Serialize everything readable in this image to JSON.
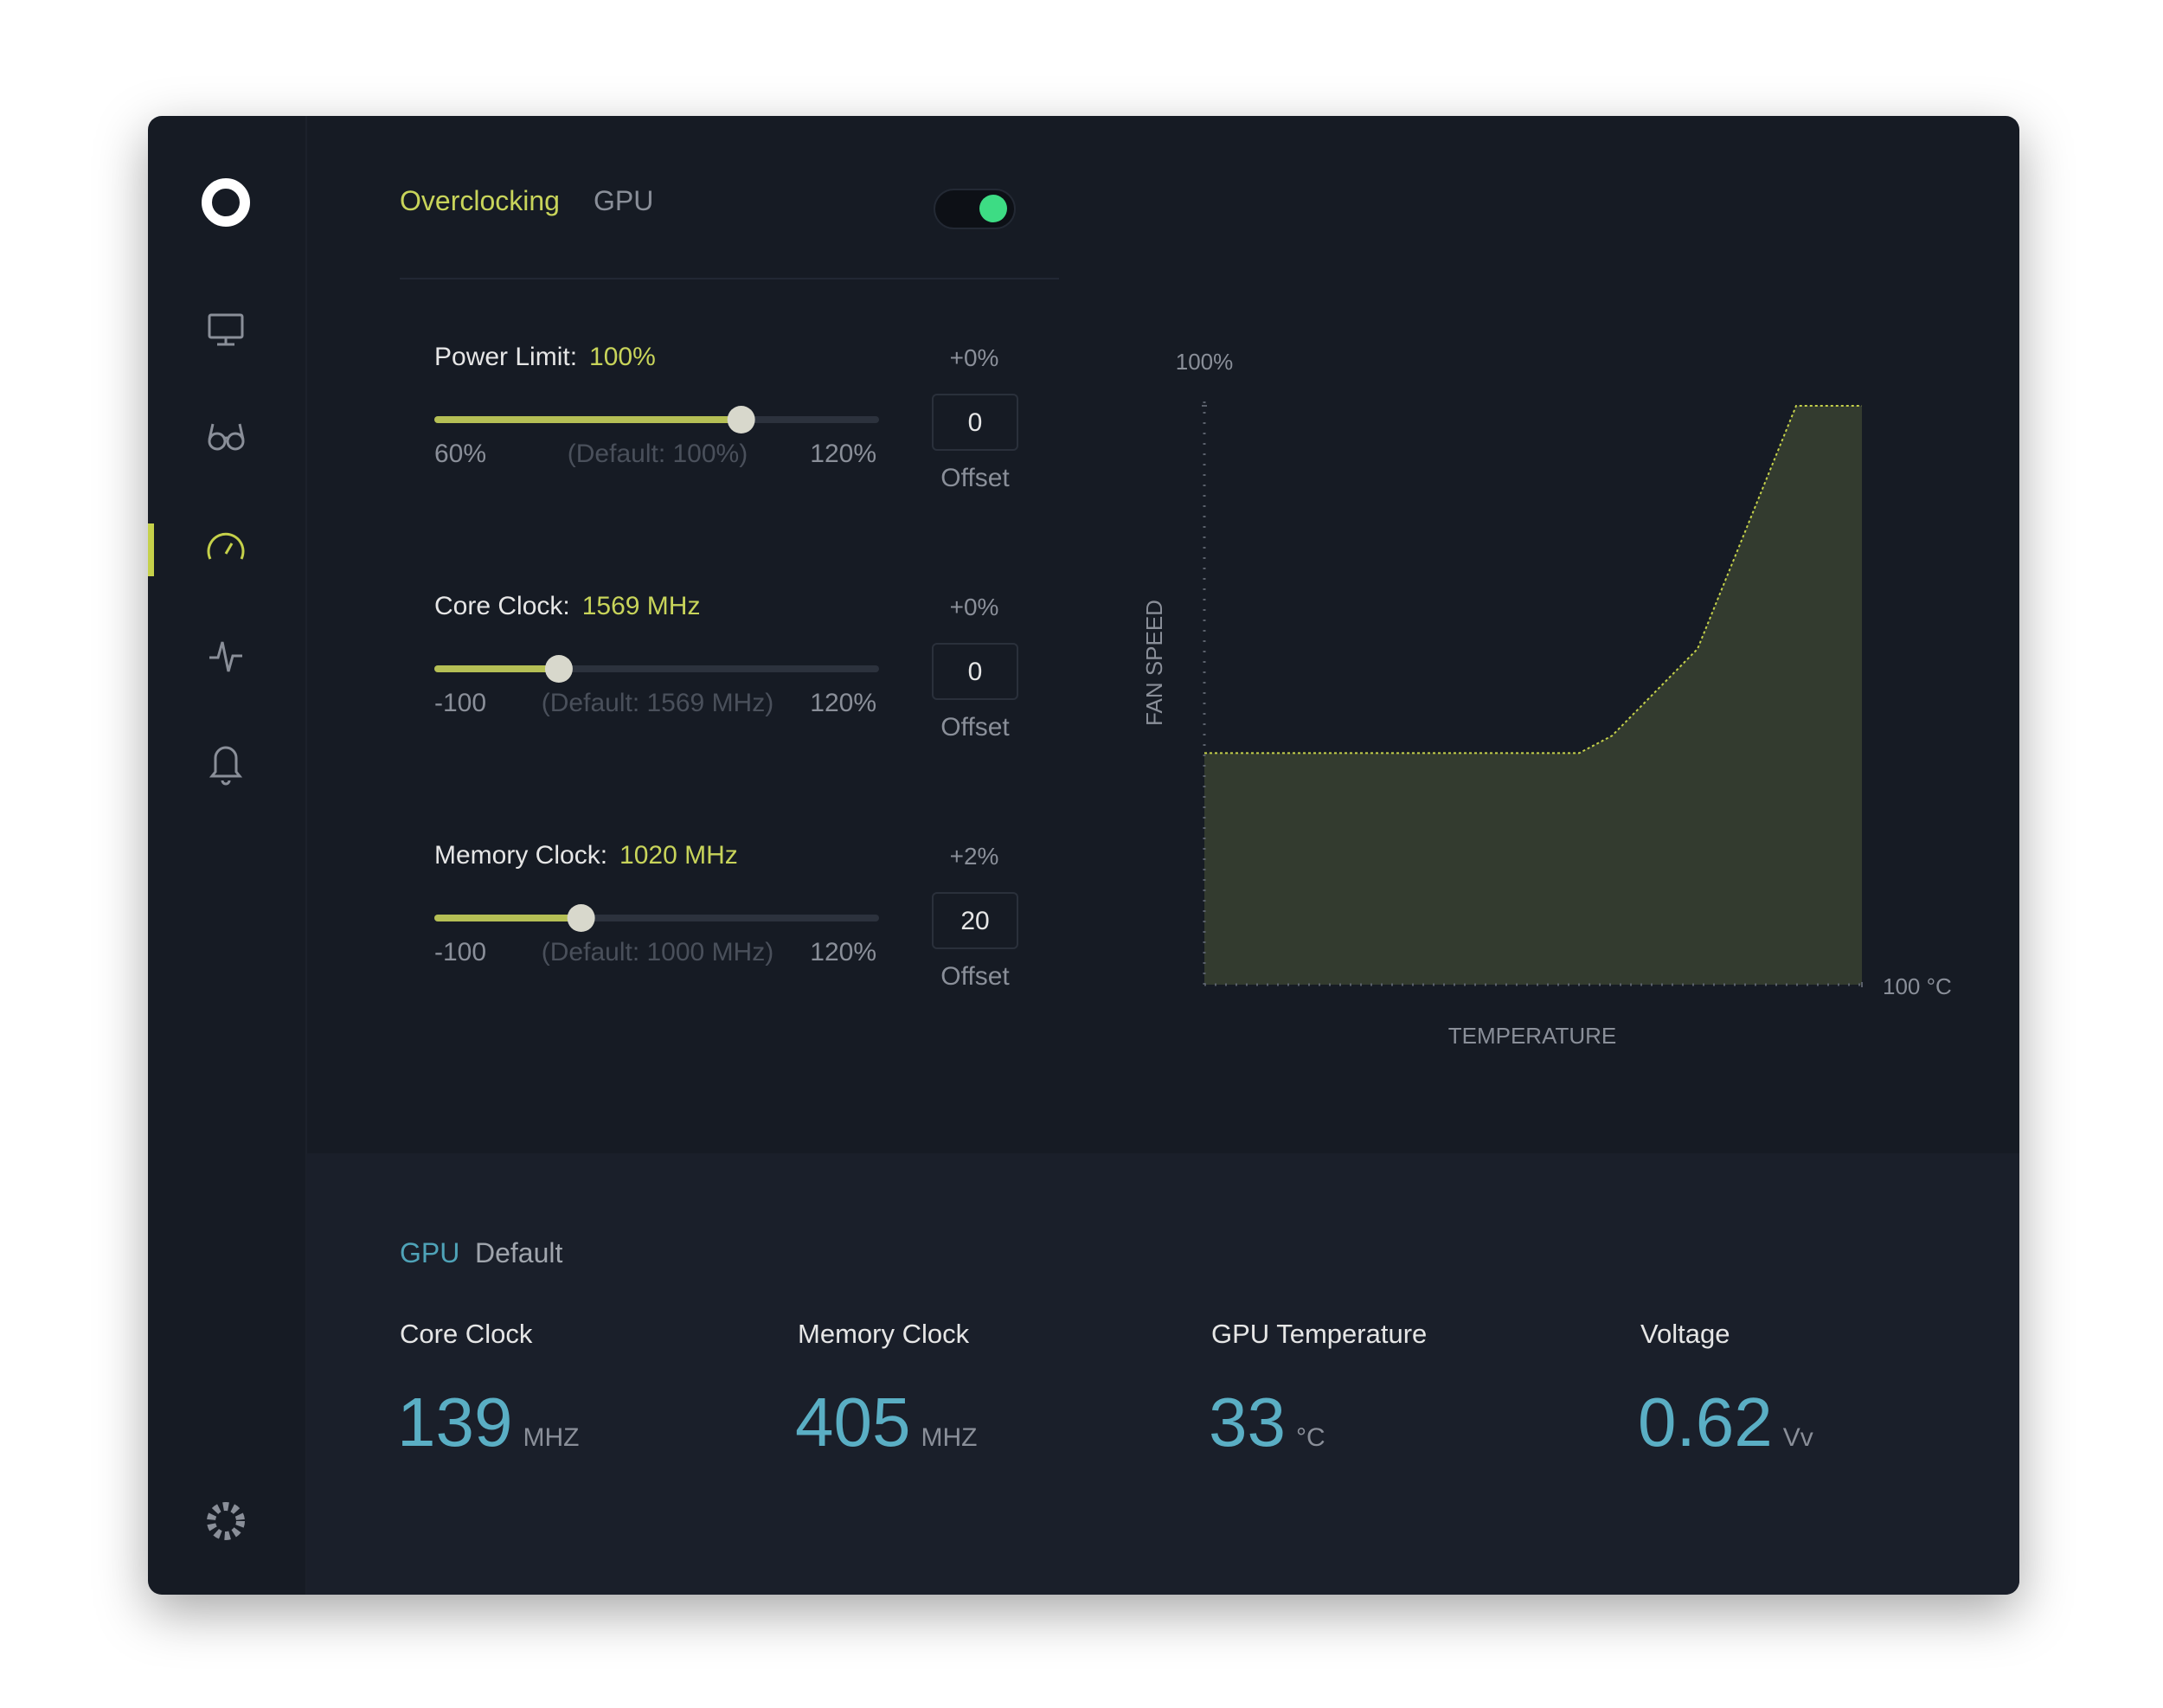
{
  "header": {
    "title": "Overclocking",
    "subtitle": "GPU"
  },
  "sliders": [
    {
      "label": "Power Limit:",
      "value": "100%",
      "min_label": "60%",
      "default_label": "(Default: 100%)",
      "max_label": "120%",
      "position": 69,
      "change": "+0%",
      "offset": "0",
      "offset_label": "Offset"
    },
    {
      "label": "Core Clock:",
      "value": "1569 MHz",
      "min_label": "-100",
      "default_label": "(Default: 1569 MHz)",
      "max_label": "120%",
      "position": 28,
      "change": "+0%",
      "offset": "0",
      "offset_label": "Offset"
    },
    {
      "label": "Memory Clock:",
      "value": "1020 MHz",
      "min_label": "-100",
      "default_label": "(Default: 1000 MHz)",
      "max_label": "120%",
      "position": 33,
      "change": "+2%",
      "offset": "20",
      "offset_label": "Offset"
    }
  ],
  "chart_data": {
    "type": "area",
    "x": [
      0,
      57,
      62,
      75,
      90,
      100
    ],
    "values": [
      40,
      40,
      43,
      58,
      100,
      100
    ],
    "xlim": [
      0,
      100
    ],
    "ylim": [
      0,
      100
    ],
    "xticks": [
      {
        "value": 100,
        "label": "100 °C"
      }
    ],
    "yticks": [
      {
        "value": 100,
        "label": "100%"
      }
    ],
    "xlabel": "TEMPERATURE",
    "ylabel": "FAN SPEED",
    "color": "#c5d14a",
    "fill": "#333b2f"
  },
  "stats_header": {
    "title": "GPU",
    "subtitle": "Default"
  },
  "stats": [
    {
      "label": "Core Clock",
      "value": "139",
      "unit": "MHZ"
    },
    {
      "label": "Memory Clock",
      "value": "405",
      "unit": "MHZ"
    },
    {
      "label": "GPU Temperature",
      "value": "33",
      "unit": "°C"
    },
    {
      "label": "Voltage",
      "value": "0.62",
      "unit": "Vv"
    }
  ]
}
